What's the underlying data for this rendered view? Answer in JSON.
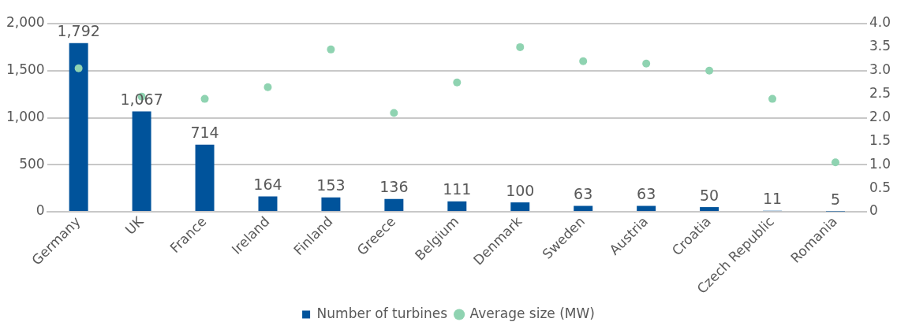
{
  "chart_data": {
    "type": "bar",
    "categories": [
      "Germany",
      "UK",
      "France",
      "Ireland",
      "Finland",
      "Greece",
      "Belgium",
      "Denmark",
      "Sweden",
      "Austria",
      "Croatia",
      "Czech Republic",
      "Romania"
    ],
    "series": [
      {
        "name": "Number of turbines",
        "color": "#00539b",
        "values": [
          1792,
          1067,
          714,
          164,
          153,
          136,
          111,
          100,
          63,
          63,
          50,
          11,
          5
        ],
        "value_labels": [
          "1,792",
          "1,067",
          "714",
          "164",
          "153",
          "136",
          "111",
          "100",
          "63",
          "63",
          "50",
          "11",
          "5"
        ]
      },
      {
        "name": "Average size (MW)",
        "type": "scatter",
        "axis": "y2",
        "color": "#8fd3b1",
        "values": [
          3.05,
          2.45,
          2.4,
          2.65,
          3.45,
          2.1,
          2.75,
          3.5,
          3.2,
          3.15,
          3.0,
          2.4,
          1.05
        ]
      }
    ],
    "ylim": [
      0,
      2000
    ],
    "yticks": [
      0,
      500,
      {
        "value": 1000,
        "label": "1,000"
      },
      {
        "value": 1500,
        "label": "1,500"
      },
      {
        "value": 2000,
        "label": "2,000"
      }
    ],
    "y2lim": [
      0,
      4
    ],
    "y2ticks": [
      0,
      0.5,
      {
        "value": 1,
        "label": "1.0"
      },
      1.5,
      {
        "value": 2,
        "label": "2.0"
      },
      2.5,
      {
        "value": 3,
        "label": "3.0"
      },
      3.5,
      {
        "value": 4,
        "label": "4.0"
      }
    ],
    "grid": "y",
    "legend": "bottom",
    "marker": "circle"
  }
}
